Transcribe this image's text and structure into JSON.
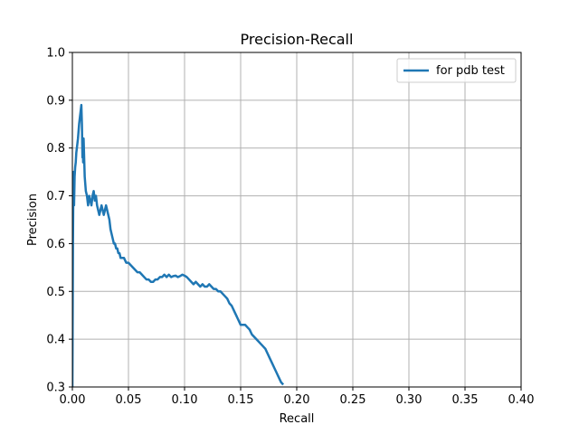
{
  "chart_data": {
    "type": "line",
    "title": "Precision-Recall",
    "xlabel": "Recall",
    "ylabel": "Precision",
    "xlim": [
      0.0,
      0.4
    ],
    "ylim": [
      0.3,
      1.0
    ],
    "xticks": [
      "0.00",
      "0.05",
      "0.10",
      "0.15",
      "0.20",
      "0.25",
      "0.30",
      "0.35",
      "0.40"
    ],
    "yticks": [
      "0.3",
      "0.4",
      "0.5",
      "0.6",
      "0.7",
      "0.8",
      "0.9",
      "1.0"
    ],
    "grid": true,
    "legend_position": "top-right",
    "series": [
      {
        "name": "for pdb test",
        "color": "#1f77b4",
        "x": [
          0.0,
          0.0005,
          0.001,
          0.0015,
          0.002,
          0.0025,
          0.003,
          0.0035,
          0.004,
          0.005,
          0.006,
          0.007,
          0.008,
          0.0085,
          0.009,
          0.0093,
          0.0096,
          0.01,
          0.0105,
          0.011,
          0.012,
          0.013,
          0.014,
          0.015,
          0.016,
          0.017,
          0.018,
          0.019,
          0.02,
          0.021,
          0.022,
          0.023,
          0.024,
          0.025,
          0.026,
          0.027,
          0.028,
          0.029,
          0.03,
          0.031,
          0.032,
          0.033,
          0.034,
          0.035,
          0.036,
          0.037,
          0.038,
          0.039,
          0.04,
          0.041,
          0.042,
          0.043,
          0.044,
          0.046,
          0.048,
          0.05,
          0.052,
          0.054,
          0.056,
          0.058,
          0.06,
          0.062,
          0.064,
          0.066,
          0.068,
          0.07,
          0.072,
          0.074,
          0.076,
          0.078,
          0.08,
          0.082,
          0.084,
          0.086,
          0.088,
          0.09,
          0.092,
          0.094,
          0.096,
          0.098,
          0.1,
          0.102,
          0.104,
          0.106,
          0.108,
          0.11,
          0.112,
          0.114,
          0.116,
          0.118,
          0.12,
          0.122,
          0.124,
          0.126,
          0.128,
          0.13,
          0.132,
          0.134,
          0.136,
          0.138,
          0.14,
          0.142,
          0.144,
          0.146,
          0.148,
          0.15,
          0.152,
          0.154,
          0.156,
          0.158,
          0.16,
          0.162,
          0.164,
          0.166,
          0.168,
          0.17,
          0.172,
          0.174,
          0.176,
          0.178,
          0.18,
          0.182,
          0.184,
          0.186,
          0.188
        ],
        "y": [
          0.3,
          0.6,
          0.75,
          0.68,
          0.74,
          0.76,
          0.77,
          0.79,
          0.8,
          0.82,
          0.85,
          0.87,
          0.89,
          0.85,
          0.78,
          0.81,
          0.77,
          0.82,
          0.78,
          0.74,
          0.71,
          0.7,
          0.68,
          0.7,
          0.69,
          0.68,
          0.7,
          0.71,
          0.69,
          0.7,
          0.68,
          0.67,
          0.66,
          0.67,
          0.68,
          0.67,
          0.66,
          0.67,
          0.68,
          0.67,
          0.66,
          0.65,
          0.63,
          0.62,
          0.61,
          0.6,
          0.6,
          0.59,
          0.59,
          0.58,
          0.58,
          0.57,
          0.57,
          0.57,
          0.56,
          0.56,
          0.555,
          0.55,
          0.545,
          0.54,
          0.54,
          0.535,
          0.53,
          0.525,
          0.525,
          0.52,
          0.52,
          0.525,
          0.525,
          0.53,
          0.53,
          0.535,
          0.53,
          0.535,
          0.53,
          0.532,
          0.533,
          0.53,
          0.532,
          0.535,
          0.533,
          0.53,
          0.525,
          0.52,
          0.515,
          0.52,
          0.515,
          0.51,
          0.515,
          0.51,
          0.51,
          0.515,
          0.51,
          0.505,
          0.505,
          0.5,
          0.5,
          0.495,
          0.49,
          0.485,
          0.475,
          0.47,
          0.46,
          0.45,
          0.44,
          0.43,
          0.43,
          0.43,
          0.425,
          0.42,
          0.41,
          0.405,
          0.4,
          0.395,
          0.39,
          0.385,
          0.38,
          0.37,
          0.36,
          0.35,
          0.34,
          0.33,
          0.32,
          0.31,
          0.305
        ]
      }
    ]
  }
}
